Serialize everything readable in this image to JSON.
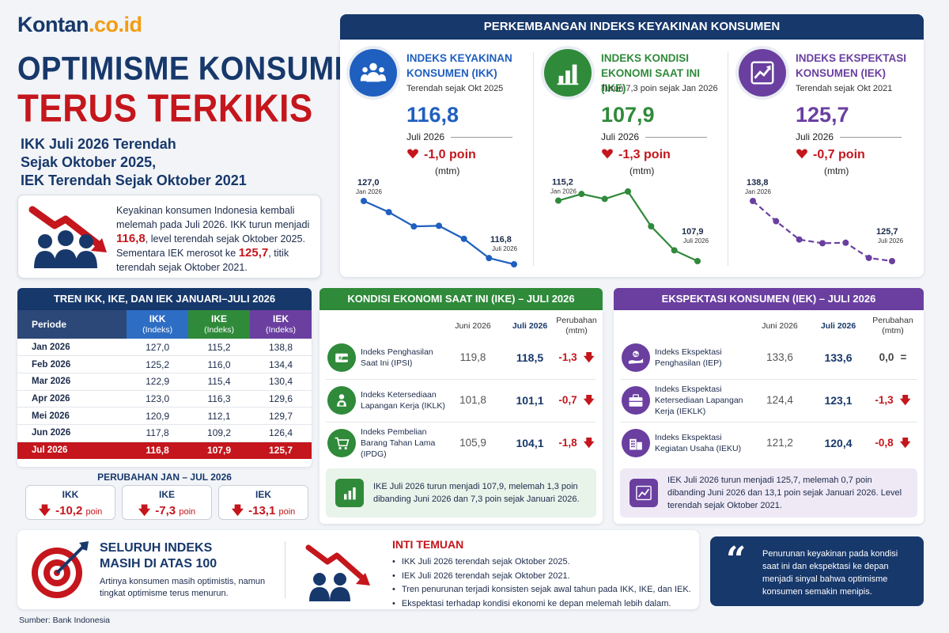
{
  "logo": {
    "part1": "Kontan",
    "part2": ".co.id"
  },
  "headline": {
    "line1": "OPTIMISME KONSUMEN",
    "line2": "TERUS TERKIKIS",
    "sub1": "IKK Juli 2026 Terendah",
    "sub2": "Sejak Oktober 2025,",
    "sub3": "IEK Terendah Sejak Oktober 2021"
  },
  "intro": {
    "t1": "Keyakinan konsumen Indonesia kembali melemah pada Juli 2026. IKK turun menjadi ",
    "v1": "116,8",
    "t2": ", level terendah sejak Oktober 2025. Sementara IEK merosot ke ",
    "v2": "125,7",
    "t3": ", titik terendah sejak Oktober 2021."
  },
  "top": {
    "banner": "PERKEMBANGAN INDEKS KEYAKINAN KONSUMEN",
    "indicators": [
      {
        "title": "INDEKS KEYAKINAN KONSUMEN (IKK)",
        "note": "Terendah sejak Okt 2025",
        "value": "116,8",
        "month": "Juli 2026",
        "change": "-1,0 poin",
        "mtm": "(mtm)",
        "start_label": "127,0",
        "start_date": "Jan 2026",
        "end_label": "116,8",
        "end_date": "Juli 2026",
        "color": "#1f5fbf",
        "icon": "people-icon"
      },
      {
        "title": "INDEKS KONDISI EKONOMI SAAT INI (IKE)",
        "note": "Turun 7,3 poin sejak Jan 2026",
        "value": "107,9",
        "month": "Juli 2026",
        "change": "-1,3 poin",
        "mtm": "(mtm)",
        "start_label": "115,2",
        "start_date": "Jan 2026",
        "end_label": "107,9",
        "end_date": "Juli 2026",
        "color": "#2f8a3a",
        "icon": "bar-chart-icon"
      },
      {
        "title": "INDEKS EKSPEKTASI KONSUMEN (IEK)",
        "note": "Terendah sejak Okt 2021",
        "value": "125,7",
        "month": "Juli 2026",
        "change": "-0,7 poin",
        "mtm": "(mtm)",
        "start_label": "138,8",
        "start_date": "Jan 2026",
        "end_label": "125,7",
        "end_date": "Juli 2026",
        "color": "#6a3fa0",
        "icon": "trend-up-icon"
      }
    ]
  },
  "table": {
    "title": "TREN IKK, IKE, DAN IEK JANUARI–JULI 2026",
    "headers": [
      {
        "name": "Periode",
        "sub": ""
      },
      {
        "name": "IKK",
        "sub": "(Indeks)"
      },
      {
        "name": "IKE",
        "sub": "(Indeks)"
      },
      {
        "name": "IEK",
        "sub": "(Indeks)"
      }
    ],
    "rows": [
      [
        "Jan 2026",
        "127,0",
        "115,2",
        "138,8"
      ],
      [
        "Feb 2026",
        "125,2",
        "116,0",
        "134,4"
      ],
      [
        "Mar 2026",
        "122,9",
        "115,4",
        "130,4"
      ],
      [
        "Apr 2026",
        "123,0",
        "116,3",
        "129,6"
      ],
      [
        "Mei 2026",
        "120,9",
        "112,1",
        "129,7"
      ],
      [
        "Jun 2026",
        "117,8",
        "109,2",
        "126,4"
      ],
      [
        "Jul 2026",
        "116,8",
        "107,9",
        "125,7"
      ]
    ],
    "change_title": "PERUBAHAN JAN – JUL 2026",
    "changes": [
      {
        "label": "IKK",
        "value": "-10,2",
        "unit": "poin"
      },
      {
        "label": "IKE",
        "value": "-7,3",
        "unit": "poin"
      },
      {
        "label": "IEK",
        "value": "-13,1",
        "unit": "poin"
      }
    ]
  },
  "ike_panel": {
    "title": "KONDISI EKONOMI SAAT INI (IKE) – JULI 2026",
    "col1": "Juni 2026",
    "col2": "Juli 2026",
    "col3a": "Perubahan",
    "col3b": "(mtm)",
    "rows": [
      {
        "label": "Indeks Penghasilan Saat Ini (IPSI)",
        "jun": "119,8",
        "jul": "118,5",
        "chg": "-1,3",
        "dir": "down",
        "icon": "wallet-icon"
      },
      {
        "label": "Indeks Ketersediaan Lapangan Kerja (IKLK)",
        "jun": "101,8",
        "jul": "101,1",
        "chg": "-0,7",
        "dir": "down",
        "icon": "worker-icon"
      },
      {
        "label": "Indeks Pembelian Barang Tahan Lama (IPDG)",
        "jun": "105,9",
        "jul": "104,1",
        "chg": "-1,8",
        "dir": "down",
        "icon": "cart-icon"
      }
    ],
    "note": "IKE Juli 2026 turun menjadi 107,9, melemah 1,3 poin dibanding Juni 2026 dan 7,3 poin sejak Januari 2026."
  },
  "iek_panel": {
    "title": "EKSPEKTASI KONSUMEN (IEK) – JULI 2026",
    "col1": "Juni 2026",
    "col2": "Juli 2026",
    "col3a": "Perubahan",
    "col3b": "(mtm)",
    "rows": [
      {
        "label": "Indeks Ekspektasi Penghasilan (IEP)",
        "jun": "133,6",
        "jul": "133,6",
        "chg": "0,0",
        "dir": "flat",
        "icon": "money-hand-icon"
      },
      {
        "label": "Indeks Ekspektasi Ketersediaan Lapangan Kerja (IEKLK)",
        "jun": "124,4",
        "jul": "123,1",
        "chg": "-1,3",
        "dir": "down",
        "icon": "briefcase-icon"
      },
      {
        "label": "Indeks Ekspektasi Kegiatan Usaha (IEKU)",
        "jun": "121,2",
        "jul": "120,4",
        "chg": "-0,8",
        "dir": "down",
        "icon": "building-icon"
      }
    ],
    "note": "IEK Juli 2026 turun menjadi 125,7, melemah 0,7 poin dibanding Juni 2026 dan 13,1 poin sejak Januari 2026. Level terendah sejak Oktober 2021."
  },
  "bottom": {
    "title1": "SELURUH INDEKS",
    "title2": "MASIH DI ATAS 100",
    "desc": "Artinya konsumen masih optimistis, namun tingkat optimisme terus menurun.",
    "findings_title": "INTI TEMUAN",
    "findings": [
      "IKK Juli 2026 terendah sejak Oktober 2025.",
      "IEK Juli 2026 terendah sejak Oktober 2021.",
      "Tren penurunan terjadi konsisten sejak awal tahun pada IKK, IKE, dan IEK.",
      "Ekspektasi terhadap kondisi ekonomi ke depan melemah lebih dalam."
    ],
    "quote": "Penurunan keyakinan pada kondisi saat ini dan ekspektasi ke depan menjadi sinyal bahwa optimisme konsumen semakin menipis."
  },
  "source": "Sumber: Bank Indonesia",
  "chart_data": [
    {
      "type": "line",
      "name": "IKK",
      "x": [
        "Jan 2026",
        "Feb 2026",
        "Mar 2026",
        "Apr 2026",
        "Mei 2026",
        "Jun 2026",
        "Jul 2026"
      ],
      "values": [
        127.0,
        125.2,
        122.9,
        123.0,
        120.9,
        117.8,
        116.8
      ],
      "color": "#1f5fbf"
    },
    {
      "type": "line",
      "name": "IKE",
      "x": [
        "Jan 2026",
        "Feb 2026",
        "Mar 2026",
        "Apr 2026",
        "Mei 2026",
        "Jun 2026",
        "Jul 2026"
      ],
      "values": [
        115.2,
        116.0,
        115.4,
        116.3,
        112.1,
        109.2,
        107.9
      ],
      "color": "#2f8a3a"
    },
    {
      "type": "line",
      "name": "IEK",
      "x": [
        "Jan 2026",
        "Feb 2026",
        "Mar 2026",
        "Apr 2026",
        "Mei 2026",
        "Jun 2026",
        "Jul 2026"
      ],
      "values": [
        138.8,
        134.4,
        130.4,
        129.6,
        129.7,
        126.4,
        125.7
      ],
      "color": "#6a3fa0"
    }
  ]
}
